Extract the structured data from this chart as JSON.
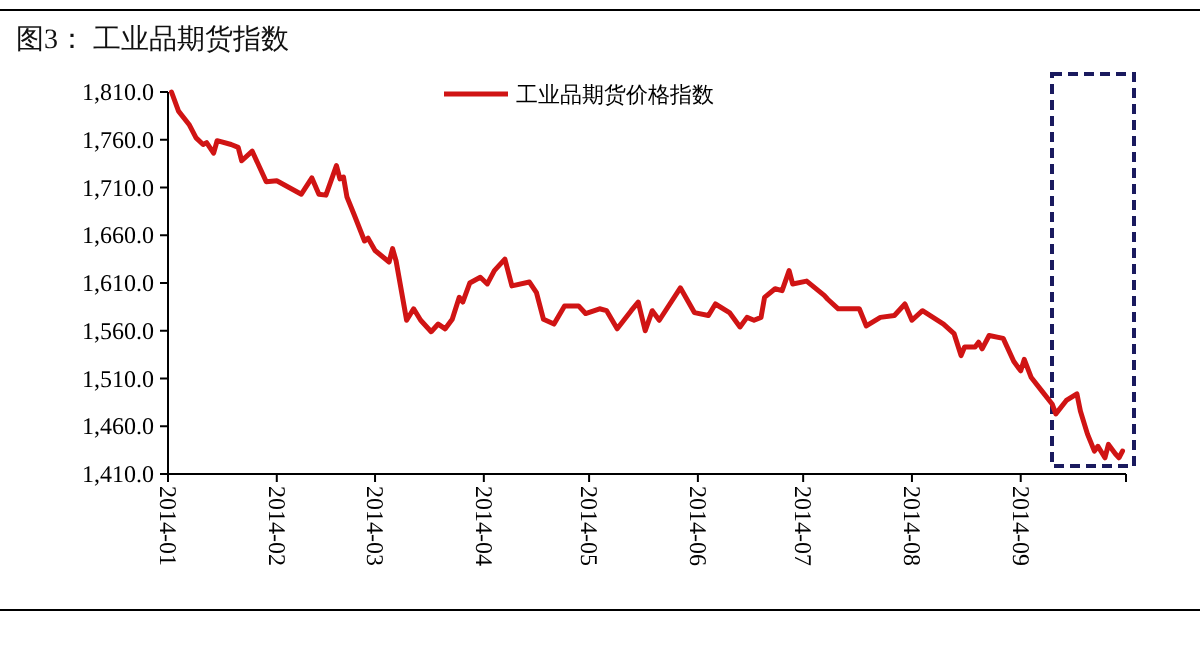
{
  "chart_data": {
    "type": "line",
    "title": "图3： 工业品期货指数",
    "x": [
      "2014-01-02",
      "2014-01-04",
      "2014-01-07",
      "2014-01-09",
      "2014-01-11",
      "2014-01-12",
      "2014-01-14",
      "2014-01-15",
      "2014-01-19",
      "2014-01-21",
      "2014-01-22",
      "2014-01-25",
      "2014-01-29",
      "2014-02-01",
      "2014-02-08",
      "2014-02-11",
      "2014-02-13",
      "2014-02-15",
      "2014-02-18",
      "2014-02-19",
      "2014-02-20",
      "2014-02-21",
      "2014-02-23",
      "2014-02-26",
      "2014-02-27",
      "2014-03-01",
      "2014-03-05",
      "2014-03-06",
      "2014-03-07",
      "2014-03-10",
      "2014-03-12",
      "2014-03-14",
      "2014-03-17",
      "2014-03-19",
      "2014-03-21",
      "2014-03-23",
      "2014-03-25",
      "2014-03-26",
      "2014-03-28",
      "2014-03-31",
      "2014-04-02",
      "2014-04-04",
      "2014-04-07",
      "2014-04-09",
      "2014-04-14",
      "2014-04-16",
      "2014-04-18",
      "2014-04-21",
      "2014-04-24",
      "2014-04-28",
      "2014-04-30",
      "2014-05-04",
      "2014-05-06",
      "2014-05-09",
      "2014-05-13",
      "2014-05-15",
      "2014-05-17",
      "2014-05-19",
      "2014-05-21",
      "2014-05-27",
      "2014-05-31",
      "2014-06-04",
      "2014-06-06",
      "2014-06-10",
      "2014-06-13",
      "2014-06-15",
      "2014-06-17",
      "2014-06-19",
      "2014-06-20",
      "2014-06-23",
      "2014-06-25",
      "2014-06-27",
      "2014-06-28",
      "2014-07-02",
      "2014-07-07",
      "2014-07-08",
      "2014-07-11",
      "2014-07-17",
      "2014-07-19",
      "2014-07-23",
      "2014-07-27",
      "2014-07-30",
      "2014-08-01",
      "2014-08-04",
      "2014-08-07",
      "2014-08-10",
      "2014-08-13",
      "2014-08-15",
      "2014-08-16",
      "2014-08-19",
      "2014-08-20",
      "2014-08-21",
      "2014-08-23",
      "2014-08-27",
      "2014-08-30",
      "2014-09-01",
      "2014-09-02",
      "2014-09-04",
      "2014-09-07",
      "2014-09-10",
      "2014-09-11",
      "2014-09-14",
      "2014-09-17",
      "2014-09-18",
      "2014-09-20",
      "2014-09-22",
      "2014-09-23",
      "2014-09-25",
      "2014-09-26",
      "2014-09-28",
      "2014-09-29",
      "2014-09-30"
    ],
    "series": [
      {
        "name": "工业品期货价格指数",
        "color": "#d01414",
        "values": [
          1810,
          1790,
          1776,
          1762,
          1755,
          1757,
          1746,
          1759,
          1755,
          1752,
          1738,
          1748,
          1716,
          1717,
          1703,
          1720,
          1703,
          1702,
          1733,
          1719,
          1721,
          1700,
          1682,
          1654,
          1657,
          1644,
          1632,
          1646,
          1633,
          1571,
          1583,
          1571,
          1559,
          1567,
          1562,
          1572,
          1595,
          1590,
          1610,
          1616,
          1609,
          1623,
          1635,
          1607,
          1611,
          1600,
          1572,
          1567,
          1586,
          1586,
          1578,
          1583,
          1581,
          1562,
          1581,
          1590,
          1560,
          1581,
          1571,
          1605,
          1579,
          1576,
          1588,
          1579,
          1564,
          1574,
          1571,
          1574,
          1595,
          1604,
          1602,
          1623,
          1609,
          1612,
          1597,
          1593,
          1583,
          1583,
          1565,
          1574,
          1576,
          1588,
          1571,
          1581,
          1574,
          1567,
          1557,
          1534,
          1543,
          1543,
          1548,
          1541,
          1555,
          1552,
          1528,
          1518,
          1530,
          1511,
          1497,
          1483,
          1473,
          1487,
          1494,
          1476,
          1452,
          1434,
          1439,
          1427,
          1441,
          1431,
          1427,
          1434
        ]
      }
    ],
    "xlim": [
      "2014-01-01",
      "2014-10-01"
    ],
    "xticks": [
      {
        "value": "2014-01",
        "label": "2014-01"
      },
      {
        "value": "2014-02",
        "label": "2014-02"
      },
      {
        "value": "2014-03",
        "label": "2014-03"
      },
      {
        "value": "2014-04",
        "label": "2014-04"
      },
      {
        "value": "2014-05",
        "label": "2014-05"
      },
      {
        "value": "2014-06",
        "label": "2014-06"
      },
      {
        "value": "2014-07",
        "label": "2014-07"
      },
      {
        "value": "2014-08",
        "label": "2014-08"
      },
      {
        "value": "2014-09",
        "label": "2014-09"
      },
      {
        "value": "2014-10",
        "label": null
      }
    ],
    "ylim": [
      1410,
      1810
    ],
    "yticks": [
      {
        "value": 1410,
        "label": "1,410.0"
      },
      {
        "value": 1460,
        "label": "1,460.0"
      },
      {
        "value": 1510,
        "label": "1,510.0"
      },
      {
        "value": 1560,
        "label": "1,560.0"
      },
      {
        "value": 1610,
        "label": "1,610.0"
      },
      {
        "value": 1660,
        "label": "1,660.0"
      },
      {
        "value": 1710,
        "label": "1,710.0"
      },
      {
        "value": 1760,
        "label": "1,760.0"
      },
      {
        "value": 1810,
        "label": "1,810.0"
      }
    ],
    "legend": "top",
    "marker": "none",
    "line_style": "solid"
  }
}
